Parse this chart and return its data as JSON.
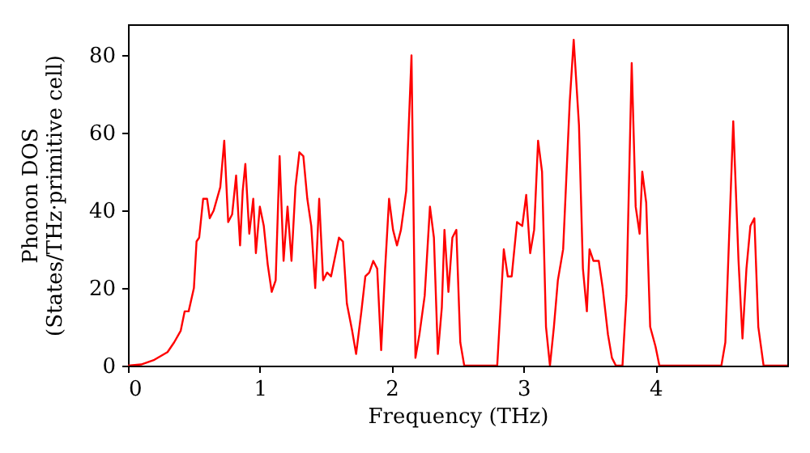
{
  "chart_data": {
    "type": "line",
    "xlabel": "Frequency (THz)",
    "ylabel": "Phonon DOS\n(States/THz·primitive cell)",
    "x": [
      0,
      0.1,
      0.2,
      0.3,
      0.35,
      0.4,
      0.43,
      0.46,
      0.5,
      0.52,
      0.54,
      0.57,
      0.6,
      0.62,
      0.65,
      0.7,
      0.73,
      0.76,
      0.79,
      0.82,
      0.85,
      0.87,
      0.89,
      0.92,
      0.95,
      0.97,
      1.0,
      1.03,
      1.06,
      1.09,
      1.12,
      1.15,
      1.18,
      1.21,
      1.24,
      1.27,
      1.3,
      1.33,
      1.36,
      1.39,
      1.42,
      1.45,
      1.48,
      1.51,
      1.54,
      1.57,
      1.6,
      1.63,
      1.66,
      1.7,
      1.73,
      1.77,
      1.8,
      1.83,
      1.86,
      1.89,
      1.92,
      1.95,
      1.98,
      2.01,
      2.04,
      2.07,
      2.11,
      2.15,
      2.18,
      2.21,
      2.25,
      2.29,
      2.32,
      2.35,
      2.38,
      2.4,
      2.43,
      2.46,
      2.49,
      2.52,
      2.55,
      2.8,
      2.85,
      2.88,
      2.91,
      2.95,
      2.99,
      3.02,
      3.05,
      3.08,
      3.11,
      3.14,
      3.17,
      3.2,
      3.23,
      3.26,
      3.3,
      3.35,
      3.38,
      3.42,
      3.45,
      3.48,
      3.5,
      3.53,
      3.57,
      3.6,
      3.64,
      3.67,
      3.7,
      3.75,
      3.78,
      3.82,
      3.85,
      3.88,
      3.9,
      3.93,
      3.96,
      4.0,
      4.03,
      4.5,
      4.53,
      4.59,
      4.63,
      4.66,
      4.69,
      4.72,
      4.75,
      4.78,
      4.82,
      5.0
    ],
    "series": [
      {
        "color": "#ff0000",
        "values": [
          0,
          0.3,
          1.5,
          3.5,
          6,
          9,
          14,
          14,
          20,
          32,
          33,
          43,
          43,
          38,
          40,
          46,
          58,
          37,
          39,
          49,
          31,
          45,
          52,
          34,
          43,
          29,
          41,
          36,
          26,
          19,
          22,
          54,
          27,
          41,
          27,
          46,
          55,
          54,
          43,
          36,
          20,
          43,
          22,
          24,
          23,
          28,
          33,
          32,
          16,
          9,
          3,
          14,
          23,
          24,
          27,
          25,
          4,
          25,
          43,
          35,
          31,
          35,
          45,
          80,
          2,
          8,
          18,
          41,
          33,
          3,
          15,
          35,
          19,
          33,
          35,
          6,
          0,
          0,
          30,
          23,
          23,
          37,
          36,
          44,
          29,
          35,
          58,
          50,
          10,
          0,
          10,
          22,
          30,
          68,
          84,
          62,
          25,
          14,
          30,
          27,
          27,
          20,
          8,
          2,
          0,
          0,
          18,
          78,
          41,
          34,
          50,
          42,
          10,
          5,
          0,
          0,
          6,
          63,
          27,
          7,
          25,
          36,
          38,
          10,
          0,
          0
        ]
      }
    ],
    "xlim": [
      0,
      5
    ],
    "ylim": [
      0,
      88
    ],
    "xticks": [
      0,
      1,
      2,
      3,
      4
    ],
    "yticks": [
      0,
      20,
      40,
      60,
      80
    ],
    "grid": false,
    "marker": "none",
    "line_style": "solid"
  }
}
